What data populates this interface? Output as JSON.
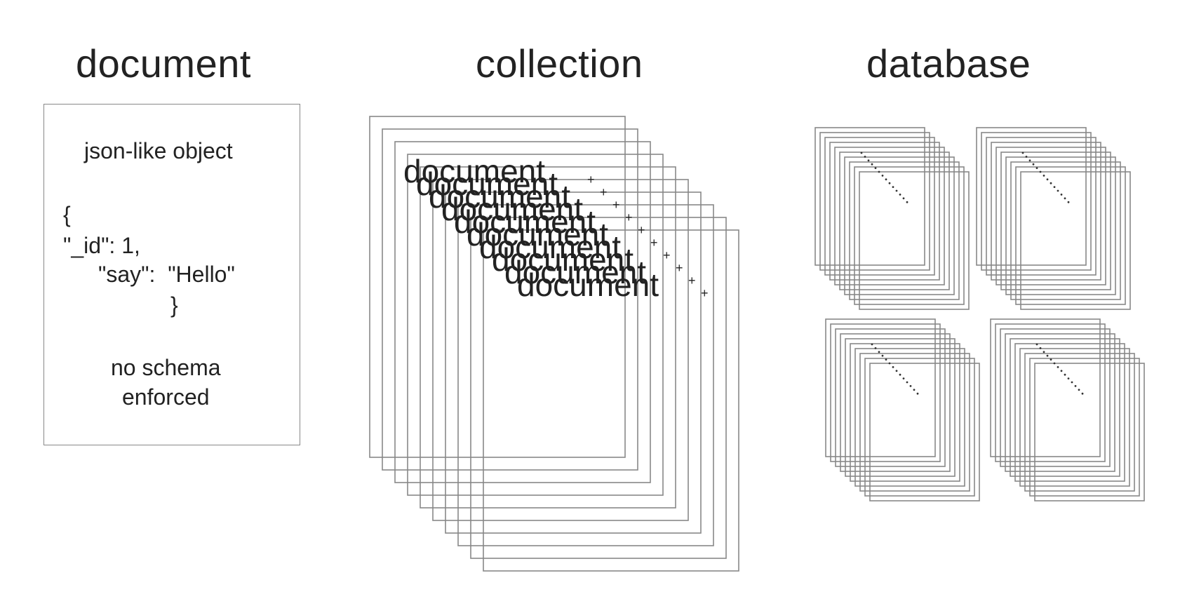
{
  "headings": {
    "document": "document",
    "collection": "collection",
    "database": "database"
  },
  "document_panel": {
    "title": "json-like object",
    "brace_open": "{",
    "id_line": "\"_id\": 1,",
    "say_line": "\"say\":  \"Hello\"",
    "brace_close": "}",
    "note_line1": "no schema",
    "note_line2": "enforced"
  },
  "collection_stack": {
    "page_label": "document"
  },
  "colors": {
    "frame": "#888888",
    "text": "#222222",
    "dots": "#333333"
  }
}
